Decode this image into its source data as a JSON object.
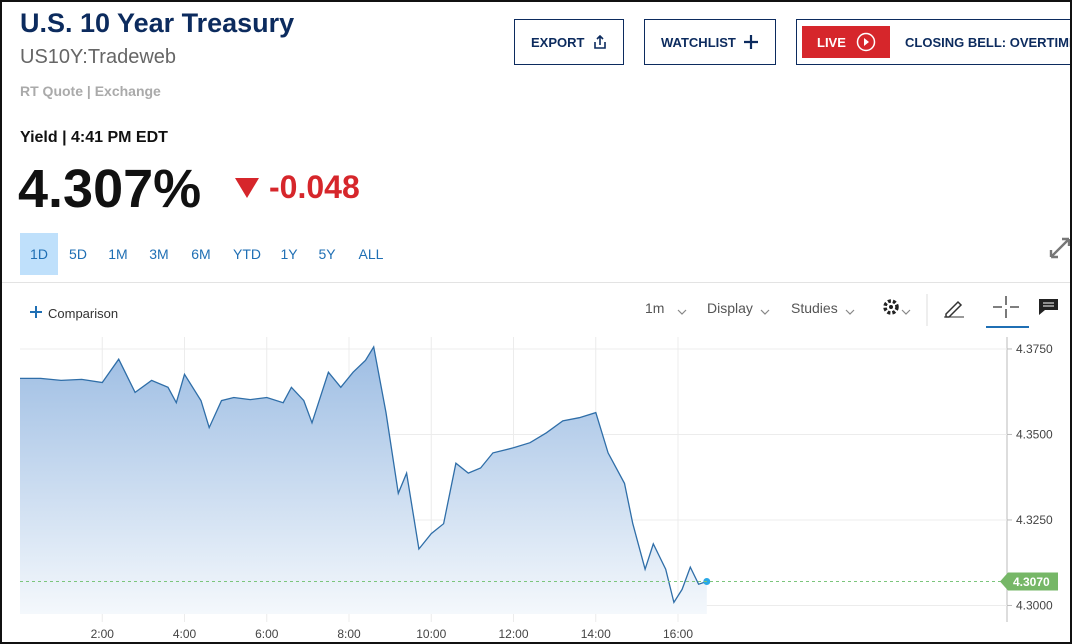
{
  "header": {
    "title": "U.S. 10 Year Treasury",
    "symbol": "US10Y:Tradeweb",
    "source": "RT Quote | Exchange"
  },
  "buttons": {
    "export": "EXPORT",
    "watchlist": "WATCHLIST",
    "live": "LIVE",
    "live_show": "CLOSING BELL: OVERTIME"
  },
  "quote": {
    "label": "Yield | 4:41 PM EDT",
    "price": "4.307%",
    "change": "-0.048"
  },
  "ranges": [
    "1D",
    "5D",
    "1M",
    "3M",
    "6M",
    "YTD",
    "1Y",
    "5Y",
    "ALL"
  ],
  "toolbar": {
    "comparison": "Comparison",
    "interval": "1m",
    "display": "Display",
    "studies": "Studies"
  },
  "chart_data": {
    "type": "area",
    "color": "#2f6ea8",
    "x": [
      0,
      0.5,
      1,
      1.5,
      2,
      2.4,
      2.8,
      3.2,
      3.6,
      3.8,
      4,
      4.4,
      4.6,
      4.9,
      5.2,
      5.6,
      6,
      6.4,
      6.6,
      6.9,
      7.1,
      7.5,
      7.8,
      8.1,
      8.4,
      8.6,
      8.9,
      9.2,
      9.4,
      9.7,
      10,
      10.3,
      10.6,
      10.9,
      11.2,
      11.5,
      12,
      12.4,
      12.8,
      13.2,
      13.6,
      14,
      14.3,
      14.7,
      14.9,
      15.2,
      15.4,
      15.7,
      15.9,
      16.1,
      16.3,
      16.5,
      16.7
    ],
    "values": [
      4.3664,
      4.3664,
      4.3658,
      4.3661,
      4.3652,
      4.372,
      4.3623,
      4.3658,
      4.3638,
      4.3593,
      4.3676,
      4.3599,
      4.352,
      4.3599,
      4.3608,
      4.3602,
      4.3608,
      4.3593,
      4.3638,
      4.3599,
      4.3534,
      4.3682,
      4.3638,
      4.3682,
      4.3717,
      4.3756,
      4.3564,
      4.3328,
      4.3387,
      4.3165,
      4.321,
      4.3239,
      4.3416,
      4.3387,
      4.3402,
      4.3446,
      4.3461,
      4.3476,
      4.3505,
      4.354,
      4.3549,
      4.3564,
      4.3446,
      4.3357,
      4.3239,
      4.3106,
      4.318,
      4.3106,
      4.3009,
      4.3047,
      4.3112,
      4.3062,
      4.307
    ],
    "xlim": [
      0,
      24
    ],
    "xticks": [
      {
        "value": 2,
        "label": "2:00"
      },
      {
        "value": 4,
        "label": "4:00"
      },
      {
        "value": 6,
        "label": "6:00"
      },
      {
        "value": 8,
        "label": "8:00"
      },
      {
        "value": 10,
        "label": "10:00"
      },
      {
        "value": 12,
        "label": "12:00"
      },
      {
        "value": 14,
        "label": "14:00"
      },
      {
        "value": 16,
        "label": "16:00"
      }
    ],
    "ylim": [
      4.2975,
      4.3785
    ],
    "yticks": [
      {
        "value": 4.3,
        "label": "4.3000"
      },
      {
        "value": 4.325,
        "label": "4.3250"
      },
      {
        "value": 4.35,
        "label": "4.3500"
      },
      {
        "value": 4.375,
        "label": "4.3750"
      }
    ],
    "last_value": {
      "value": 4.307,
      "label": "4.3070"
    },
    "grid": true
  }
}
